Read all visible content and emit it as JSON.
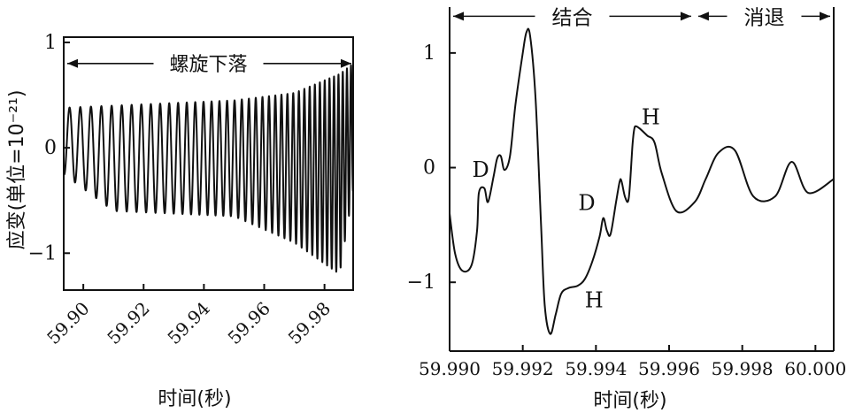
{
  "chart_data": [
    {
      "type": "line",
      "title": "",
      "xlabel": "时间(秒)",
      "ylabel": "应变(单位=10⁻²¹)",
      "xlim": [
        59.8935,
        59.9895
      ],
      "ylim": [
        -1.35,
        1.05
      ],
      "grid": false,
      "x_ticks": [
        "59.90",
        "59.92",
        "59.94",
        "59.96",
        "59.98"
      ],
      "x_tick_values": [
        59.9,
        59.92,
        59.94,
        59.96,
        59.98
      ],
      "y_ticks": [
        "1",
        "0",
        "−1"
      ],
      "y_tick_values": [
        1,
        0,
        -1
      ],
      "annotations": [
        {
          "text": "螺旋下落",
          "x_from": 59.8935,
          "x_to": 59.9895,
          "y": 0.8
        }
      ],
      "series": [
        {
          "oscillation": {
            "x_start": 59.8935,
            "x_end": 59.9895,
            "period_start_s": 0.0036,
            "period_end_s": 0.0013,
            "max_envelope": [
              [
                59.8935,
                0.38
              ],
              [
                59.95,
                0.45
              ],
              [
                59.97,
                0.52
              ],
              [
                59.985,
                0.7
              ],
              [
                59.9895,
                0.8
              ]
            ],
            "min_envelope": [
              [
                59.8935,
                -0.25
              ],
              [
                59.91,
                -0.6
              ],
              [
                59.95,
                -0.65
              ],
              [
                59.97,
                -0.9
              ],
              [
                59.985,
                -1.2
              ],
              [
                59.9895,
                -0.4
              ]
            ]
          }
        }
      ]
    },
    {
      "type": "line",
      "title": "",
      "xlabel": "时间(秒)",
      "ylabel": "",
      "xlim": [
        59.99,
        60.0005
      ],
      "ylim": [
        -1.6,
        1.4
      ],
      "grid": false,
      "x_ticks": [
        "59.990",
        "59.992",
        "59.994",
        "59.996",
        "59.998",
        "60.000"
      ],
      "x_tick_values": [
        59.99,
        59.992,
        59.994,
        59.996,
        59.998,
        60.0
      ],
      "y_ticks": [
        "1",
        "0",
        "−1"
      ],
      "y_tick_values": [
        1,
        0,
        -1
      ],
      "annotations": [
        {
          "text": "结合",
          "x_from": 59.99,
          "x_to": 59.9967,
          "y": 1.32
        },
        {
          "text": "消退",
          "x_from": 59.9967,
          "x_to": 60.0005,
          "y": 1.32
        }
      ],
      "labels": [
        {
          "text": "D",
          "x": 59.99085,
          "y": -0.08
        },
        {
          "text": "D",
          "x": 59.99375,
          "y": -0.37
        },
        {
          "text": "H",
          "x": 59.99395,
          "y": -1.22
        },
        {
          "text": "H",
          "x": 59.9955,
          "y": 0.38
        }
      ],
      "series": [
        {
          "x": [
            59.99,
            59.99015,
            59.99035,
            59.9906,
            59.99075,
            59.9908,
            59.99095,
            59.99105,
            59.9912,
            59.9913,
            59.9914,
            59.9915,
            59.99165,
            59.9918,
            59.992,
            59.9921,
            59.9922,
            59.99235,
            59.9925,
            59.9926,
            59.99275,
            59.9929,
            59.99305,
            59.99325,
            59.9935,
            59.9937,
            59.9939,
            59.9941,
            59.9942,
            59.9943,
            59.9944,
            59.99455,
            59.99465,
            59.9947,
            59.9948,
            59.9949,
            59.995,
            59.99505,
            59.9951,
            59.9952,
            59.9954,
            59.9956,
            59.9958,
            59.9962,
            59.9967,
            59.997,
            59.99735,
            59.9978,
            59.9983,
            59.9989,
            59.99935,
            59.9998,
            60.0005
          ],
          "y": [
            -0.4,
            -0.75,
            -0.9,
            -0.85,
            -0.55,
            -0.22,
            -0.18,
            -0.3,
            -0.08,
            0.08,
            0.1,
            -0.02,
            0.1,
            0.55,
            1.0,
            1.18,
            1.15,
            0.6,
            -0.5,
            -1.2,
            -1.45,
            -1.28,
            -1.1,
            -1.05,
            -1.03,
            -0.97,
            -0.82,
            -0.6,
            -0.44,
            -0.55,
            -0.58,
            -0.3,
            -0.12,
            -0.12,
            -0.26,
            -0.26,
            0.2,
            0.34,
            0.36,
            0.34,
            0.28,
            0.22,
            -0.05,
            -0.38,
            -0.3,
            -0.1,
            0.13,
            0.15,
            -0.25,
            -0.25,
            0.05,
            -0.22,
            -0.1
          ]
        }
      ]
    }
  ]
}
